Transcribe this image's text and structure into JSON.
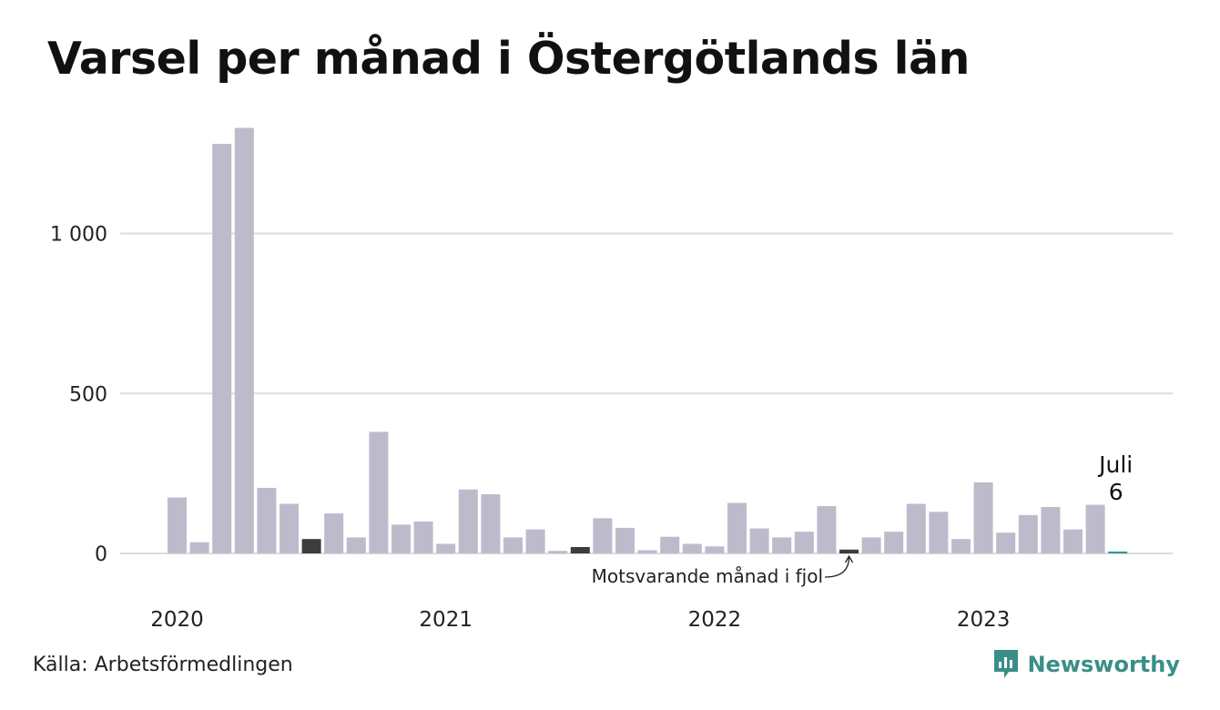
{
  "chart_data": {
    "type": "bar",
    "title": "Varsel per månad i Östergötlands län",
    "start": "2020-01",
    "months": [
      "2020-01",
      "2020-02",
      "2020-03",
      "2020-04",
      "2020-05",
      "2020-06",
      "2020-07",
      "2020-08",
      "2020-09",
      "2020-10",
      "2020-11",
      "2020-12",
      "2021-01",
      "2021-02",
      "2021-03",
      "2021-04",
      "2021-05",
      "2021-06",
      "2021-07",
      "2021-08",
      "2021-09",
      "2021-10",
      "2021-11",
      "2021-12",
      "2022-01",
      "2022-02",
      "2022-03",
      "2022-04",
      "2022-05",
      "2022-06",
      "2022-07",
      "2022-08",
      "2022-09",
      "2022-10",
      "2022-11",
      "2022-12",
      "2023-01",
      "2023-02",
      "2023-03",
      "2023-04",
      "2023-05",
      "2023-06",
      "2023-07"
    ],
    "values": [
      175,
      35,
      1280,
      1330,
      205,
      155,
      45,
      125,
      50,
      380,
      90,
      100,
      30,
      200,
      185,
      50,
      75,
      8,
      20,
      110,
      80,
      10,
      52,
      30,
      22,
      158,
      78,
      50,
      68,
      148,
      12,
      50,
      68,
      155,
      130,
      45,
      222,
      65,
      120,
      145,
      75,
      152,
      6
    ],
    "highlight_indices": [
      6,
      18,
      30
    ],
    "current_index": 42,
    "yticks": [
      0,
      500,
      1000
    ],
    "ytick_labels": [
      "0",
      "500",
      "1 000"
    ],
    "ylim": [
      0,
      1340
    ],
    "year_labels": [
      {
        "label": "2020",
        "index": 0
      },
      {
        "label": "2021",
        "index": 12
      },
      {
        "label": "2022",
        "index": 24
      },
      {
        "label": "2023",
        "index": 36
      }
    ],
    "current_label_month": "Juli",
    "current_label_value": "6",
    "annotation": "Motsvarande månad i fjol",
    "colors": {
      "bar": "#bdbbcb",
      "highlight": "#3d3d3d",
      "current": "#2a9d94",
      "grid": "#dddddd",
      "text": "#222222"
    }
  },
  "footer": {
    "source": "Källa: Arbetsförmedlingen",
    "brand": "Newsworthy"
  }
}
